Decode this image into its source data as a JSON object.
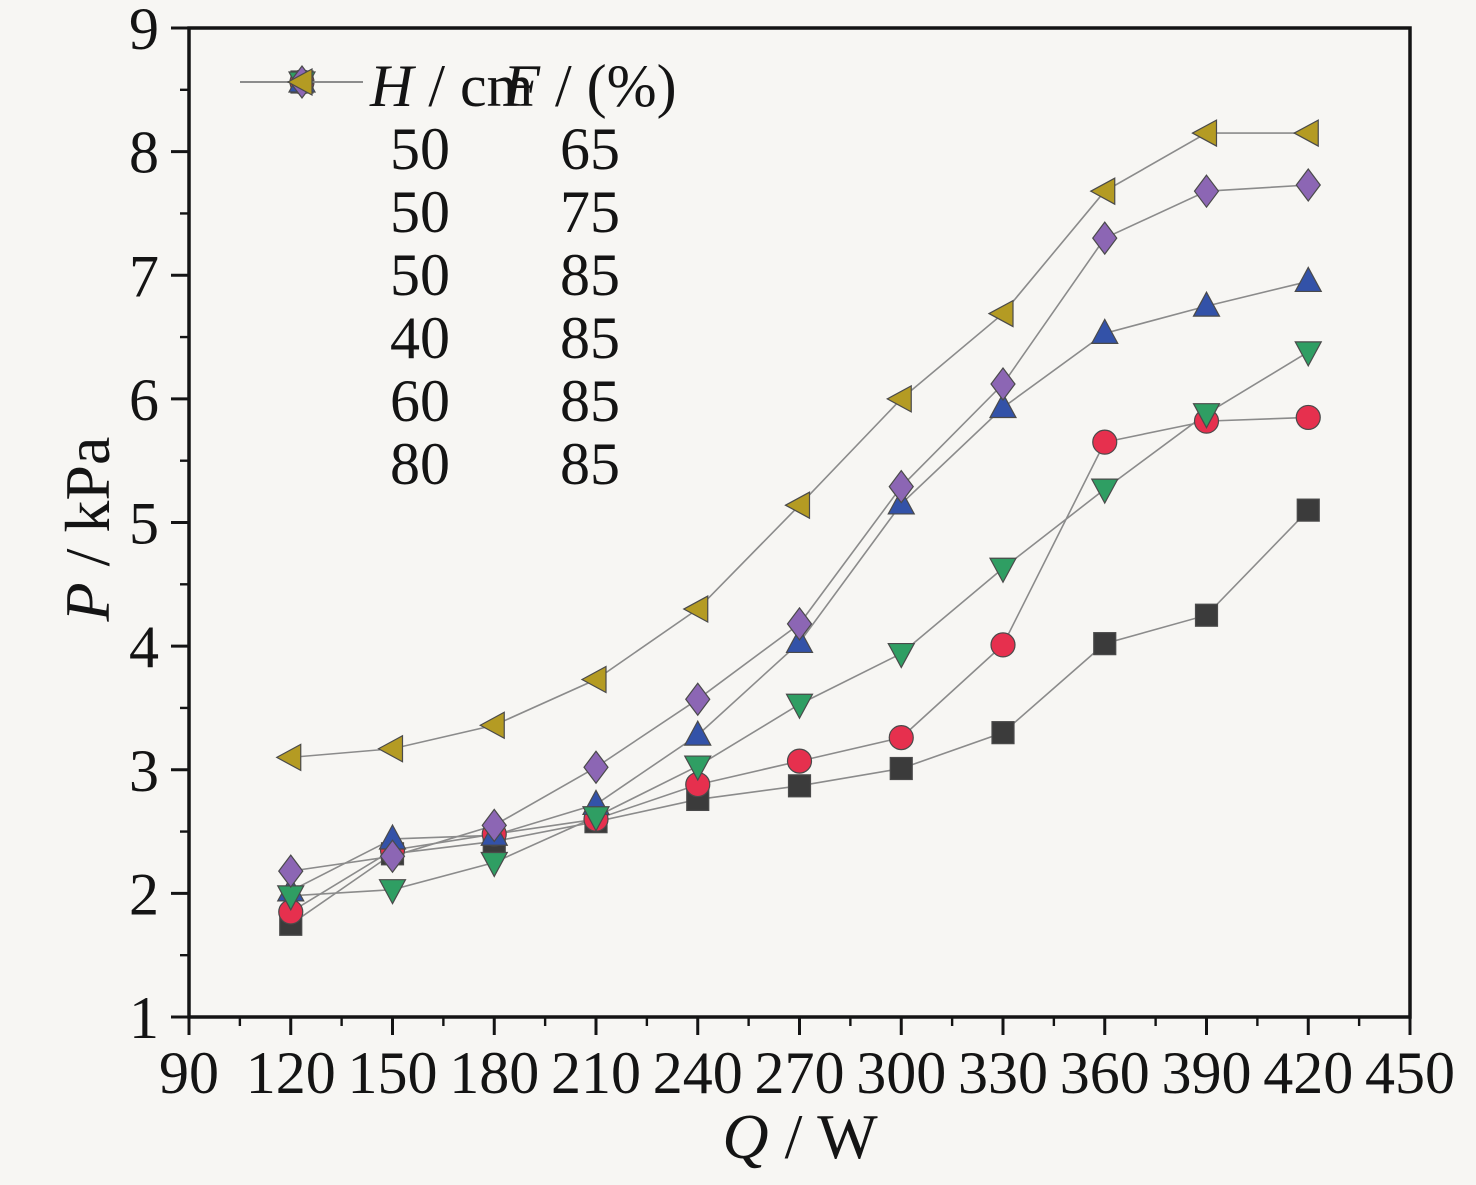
{
  "figure": {
    "background": "#f7f6f3",
    "axis_color": "#141414",
    "connector_line_color": "#8b8b8b"
  },
  "axes": {
    "x": {
      "variable": "Q",
      "sep": " / ",
      "unit": "W",
      "min": 90,
      "max": 450,
      "major_step": 30,
      "minor_step": 15,
      "tick_labels": [
        "90",
        "120",
        "150",
        "180",
        "210",
        "240",
        "270",
        "300",
        "330",
        "360",
        "390",
        "420",
        "450"
      ]
    },
    "y": {
      "variable": "P",
      "sep": " / ",
      "unit": "kPa",
      "min": 1,
      "max": 9,
      "major_step": 1,
      "minor_step": 0.5,
      "tick_labels": [
        "1",
        "2",
        "3",
        "4",
        "5",
        "6",
        "7",
        "8",
        "9"
      ]
    }
  },
  "legend": {
    "h_variable": "H",
    "h_rest": " / cm",
    "f_variable": "F",
    "f_rest": " / (%)"
  },
  "chart_data": {
    "type": "line",
    "title": "",
    "xlabel": "Q / W",
    "ylabel": "P / kPa",
    "xlim": [
      90,
      450
    ],
    "ylim": [
      1,
      9
    ],
    "grid": false,
    "legend_position": "upper-left",
    "x": [
      120,
      150,
      180,
      210,
      240,
      270,
      300,
      330,
      360,
      390,
      420
    ],
    "series": [
      {
        "name": "H=50 cm, F=65%",
        "H": "50",
        "F": "65",
        "marker": "square",
        "color": "#3b3b3b",
        "values": [
          1.75,
          2.32,
          2.42,
          2.58,
          2.76,
          2.87,
          3.01,
          3.3,
          4.02,
          4.25,
          5.1
        ]
      },
      {
        "name": "H=50 cm, F=75%",
        "H": "50",
        "F": "75",
        "marker": "circle",
        "color": "#e6304e",
        "values": [
          1.85,
          2.35,
          2.48,
          2.6,
          2.88,
          3.07,
          3.26,
          4.01,
          5.65,
          5.82,
          5.85
        ]
      },
      {
        "name": "H=50 cm, F=85%",
        "H": "50",
        "F": "85",
        "marker": "triangle-up",
        "color": "#3352a8",
        "values": [
          2.02,
          2.44,
          2.47,
          2.72,
          3.28,
          4.03,
          5.15,
          5.93,
          6.53,
          6.75,
          6.95
        ]
      },
      {
        "name": "H=40 cm, F=85%",
        "H": "40",
        "F": "85",
        "marker": "triangle-down",
        "color": "#2f9e63",
        "values": [
          1.98,
          2.03,
          2.25,
          2.62,
          3.03,
          3.53,
          3.94,
          4.63,
          5.27,
          5.88,
          6.38
        ]
      },
      {
        "name": "H=60 cm, F=85%",
        "H": "60",
        "F": "85",
        "marker": "diamond",
        "color": "#8c66b4",
        "values": [
          2.18,
          2.3,
          2.55,
          3.02,
          3.57,
          4.18,
          5.29,
          6.12,
          7.3,
          7.68,
          7.73
        ]
      },
      {
        "name": "H=80 cm, F=85%",
        "H": "80",
        "F": "85",
        "marker": "triangle-left",
        "color": "#b49b23",
        "values": [
          3.1,
          3.17,
          3.36,
          3.73,
          4.3,
          5.14,
          6.0,
          6.69,
          7.68,
          8.15,
          8.15
        ]
      }
    ]
  }
}
